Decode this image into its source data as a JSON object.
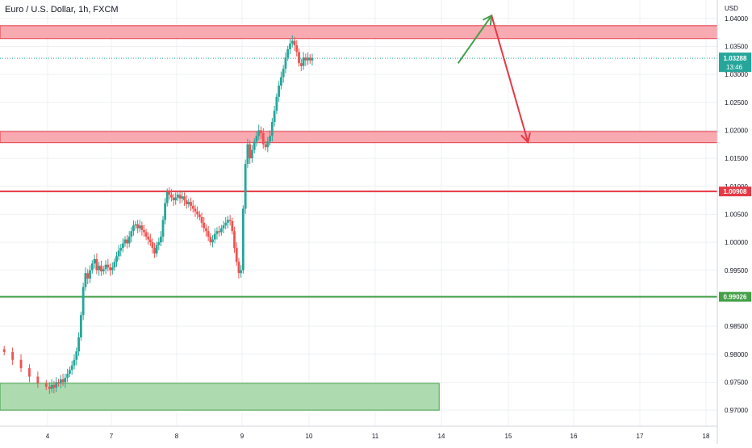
{
  "header": {
    "symbol": "Euro / U.S. Dollar, 1h, FXCM",
    "currency": "USD"
  },
  "colors": {
    "up": "#26a69a",
    "down": "#ef5350",
    "zone_red_fill": "#f7a1a8",
    "zone_red_stroke": "#e53946",
    "zone_green_fill": "#a5d6a7",
    "zone_green_stroke": "#43a047",
    "line_red": "#e53946",
    "line_green": "#43a047",
    "last_price": "#26a69a",
    "grid": "#eef0f3",
    "axis_text": "#131722",
    "arrow_green": "#43a047",
    "arrow_red": "#e53946"
  },
  "chart_data": {
    "type": "candlestick",
    "y_range": [
      0.968,
      1.043
    ],
    "y_ticks": [
      "1.04000",
      "1.03500",
      "1.03000",
      "1.02500",
      "1.02000",
      "1.01500",
      "1.01000",
      "1.00500",
      "1.00000",
      "0.99500",
      "0.99000",
      "0.98500",
      "0.98000",
      "0.97500",
      "0.97000"
    ],
    "x_ticks": [
      {
        "label": "4",
        "day": 4
      },
      {
        "label": "7",
        "day": 7
      },
      {
        "label": "8",
        "day": 8
      },
      {
        "label": "9",
        "day": 9
      },
      {
        "label": "10",
        "day": 10
      },
      {
        "label": "11",
        "day": 11
      },
      {
        "label": "14",
        "day": 14
      },
      {
        "label": "15",
        "day": 15
      },
      {
        "label": "16",
        "day": 16
      },
      {
        "label": "17",
        "day": 17
      },
      {
        "label": "18",
        "day": 18
      }
    ],
    "zones": [
      {
        "name": "resistance-zone",
        "top": 1.0387,
        "bottom": 1.0364,
        "day_end": 19,
        "kind": "red"
      },
      {
        "name": "support-zone-upper",
        "top": 1.0198,
        "bottom": 1.0178,
        "day_end": 19,
        "kind": "red"
      },
      {
        "name": "demand-zone",
        "top": 0.9748,
        "bottom": 0.97,
        "day_start": 3.4,
        "day_end": 13.9,
        "kind": "green"
      }
    ],
    "levels": [
      {
        "name": "level-resistance",
        "value": 1.00908,
        "label": "1.00908",
        "kind": "red"
      },
      {
        "name": "level-support",
        "value": 0.99026,
        "label": "0.99026",
        "kind": "green"
      }
    ],
    "last_price": {
      "value": 1.03288,
      "label": "1.03288",
      "countdown": "13:46"
    },
    "projection": {
      "green": [
        [
          14.25,
          1.032
        ],
        [
          14.75,
          1.0405
        ]
      ],
      "red": [
        [
          14.75,
          1.0405
        ],
        [
          15.3,
          1.0179
        ]
      ]
    },
    "closes": [
      0.9804,
      0.979,
      0.9775,
      0.976,
      0.9748,
      0.9742,
      0.9738,
      0.9745,
      0.974,
      0.975,
      0.9748,
      0.9755,
      0.975,
      0.9758,
      0.9765,
      0.9772,
      0.978,
      0.979,
      0.9805,
      0.983,
      0.987,
      0.992,
      0.9945,
      0.9935,
      0.995,
      0.9962,
      0.997,
      0.995,
      0.9958,
      0.9948,
      0.9952,
      0.996,
      0.9955,
      0.995,
      0.9955,
      0.9965,
      0.9975,
      0.9985,
      0.999,
      0.9998,
      1.0005,
      0.9998,
      1.001,
      1.002,
      1.003,
      1.0032,
      1.0025,
      1.003,
      1.0022,
      1.0018,
      1.001,
      1.0005,
      1.0,
      0.999,
      0.998,
      0.9995,
      1.0,
      1.001,
      1.004,
      1.007,
      1.009,
      1.0085,
      1.008,
      1.0075,
      1.008,
      1.0085,
      1.0078,
      1.0082,
      1.0075,
      1.0068,
      1.0072,
      1.0065,
      1.006,
      1.0055,
      1.005,
      1.0045,
      1.0035,
      1.0025,
      1.002,
      1.001,
      1.0,
      1.0005,
      1.0015,
      1.002,
      1.0018,
      1.0025,
      1.003,
      1.0035,
      1.004,
      1.0038,
      1.002,
      0.999,
      0.9965,
      0.9945,
      0.995,
      1.006,
      1.014,
      1.0175,
      1.015,
      1.0165,
      1.018,
      1.019,
      1.02,
      1.0195,
      1.0175,
      1.017,
      1.018,
      1.019,
      1.0215,
      1.0235,
      1.026,
      1.028,
      1.0295,
      1.031,
      1.033,
      1.0345,
      1.0355,
      1.036,
      1.0352,
      1.034,
      1.032,
      1.0315,
      1.033,
      1.0325,
      1.033,
      1.0325,
      1.0329
    ]
  }
}
